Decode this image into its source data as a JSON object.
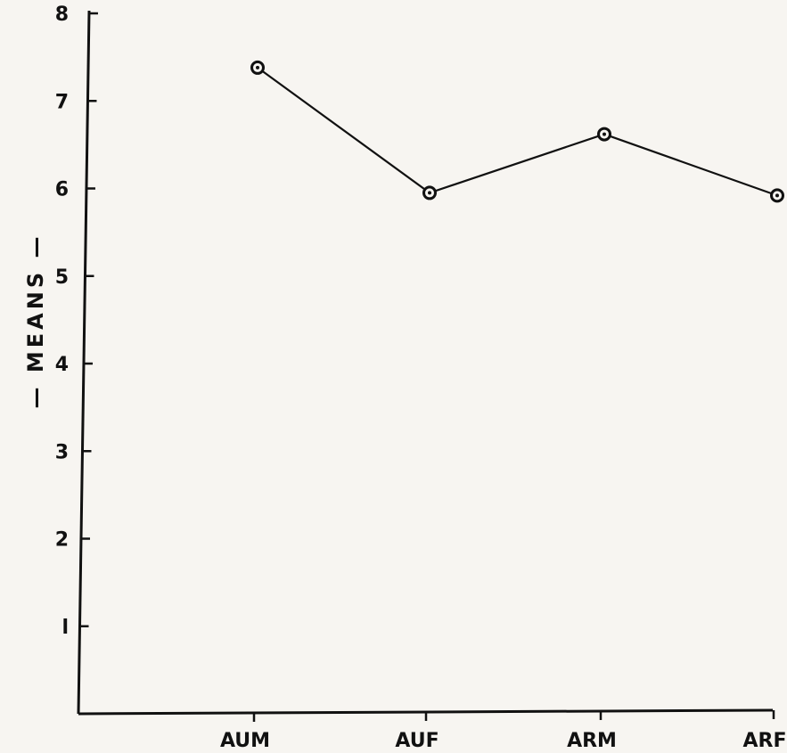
{
  "chart_data": {
    "type": "line",
    "title": "",
    "ylabel": "— MEANS —",
    "xlabel": "",
    "categories": [
      "AUM",
      "AUF",
      "ARM",
      "ARF"
    ],
    "series": [
      {
        "values": [
          7.38,
          5.95,
          6.62,
          5.92
        ]
      }
    ],
    "ylim": [
      0,
      8
    ],
    "yticks": [
      {
        "value": 1,
        "label": "l"
      },
      {
        "value": 2,
        "label": "2"
      },
      {
        "value": 3,
        "label": "3"
      },
      {
        "value": 4,
        "label": "4"
      },
      {
        "value": 5,
        "label": "5"
      },
      {
        "value": 6,
        "label": "6"
      },
      {
        "value": 7,
        "label": "7"
      },
      {
        "value": 8,
        "label": "8"
      }
    ],
    "grid": false,
    "legend": "none"
  }
}
